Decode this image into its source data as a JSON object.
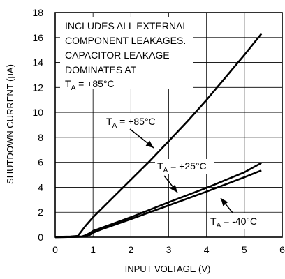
{
  "chart_data": {
    "type": "line",
    "xlabel": "INPUT VOLTAGE (V)",
    "ylabel": "SHUTDOWN CURRENT (µA)",
    "xlim": [
      0,
      6
    ],
    "ylim": [
      0,
      18
    ],
    "x_ticks": [
      "0",
      "1",
      "2",
      "3",
      "4",
      "5",
      "6"
    ],
    "y_ticks": [
      "0",
      "2",
      "4",
      "6",
      "8",
      "10",
      "12",
      "14",
      "16",
      "18"
    ],
    "grid": true,
    "annotation": {
      "lines": [
        "INCLUDES ALL EXTERNAL",
        "COMPONENT LEAKAGES.",
        "CAPACITOR LEAKAGE",
        "DOMINATES AT"
      ],
      "temp": {
        "prefix": "T",
        "sub": "A",
        "value": " = +85°C"
      }
    },
    "series": [
      {
        "label": {
          "prefix": "T",
          "sub": "A",
          "value": " = +85°C"
        },
        "x": [
          0.0,
          0.4,
          0.6,
          0.7,
          0.8,
          1.0,
          1.5,
          2.0,
          2.5,
          3.0,
          3.5,
          4.0,
          4.5,
          5.0,
          5.45
        ],
        "y": [
          0.03,
          0.05,
          0.1,
          0.5,
          0.9,
          1.6,
          3.1,
          4.6,
          6.1,
          7.7,
          9.3,
          11.0,
          12.8,
          14.6,
          16.3
        ]
      },
      {
        "label": {
          "prefix": "T",
          "sub": "A",
          "value": " = +25°C"
        },
        "x": [
          0.0,
          0.5,
          0.7,
          0.8,
          0.9,
          1.0,
          2.0,
          3.0,
          4.0,
          5.0,
          5.45
        ],
        "y": [
          0.0,
          0.02,
          0.05,
          0.15,
          0.3,
          0.5,
          1.6,
          2.8,
          3.95,
          5.2,
          5.95
        ]
      },
      {
        "label": {
          "prefix": "T",
          "sub": "A",
          "value": " = -40°C"
        },
        "x": [
          0.0,
          0.5,
          0.8,
          0.9,
          1.0,
          1.2,
          2.0,
          3.0,
          4.0,
          5.0,
          5.45
        ],
        "y": [
          0.0,
          0.02,
          0.05,
          0.15,
          0.35,
          0.6,
          1.45,
          2.55,
          3.65,
          4.8,
          5.35
        ]
      }
    ]
  }
}
